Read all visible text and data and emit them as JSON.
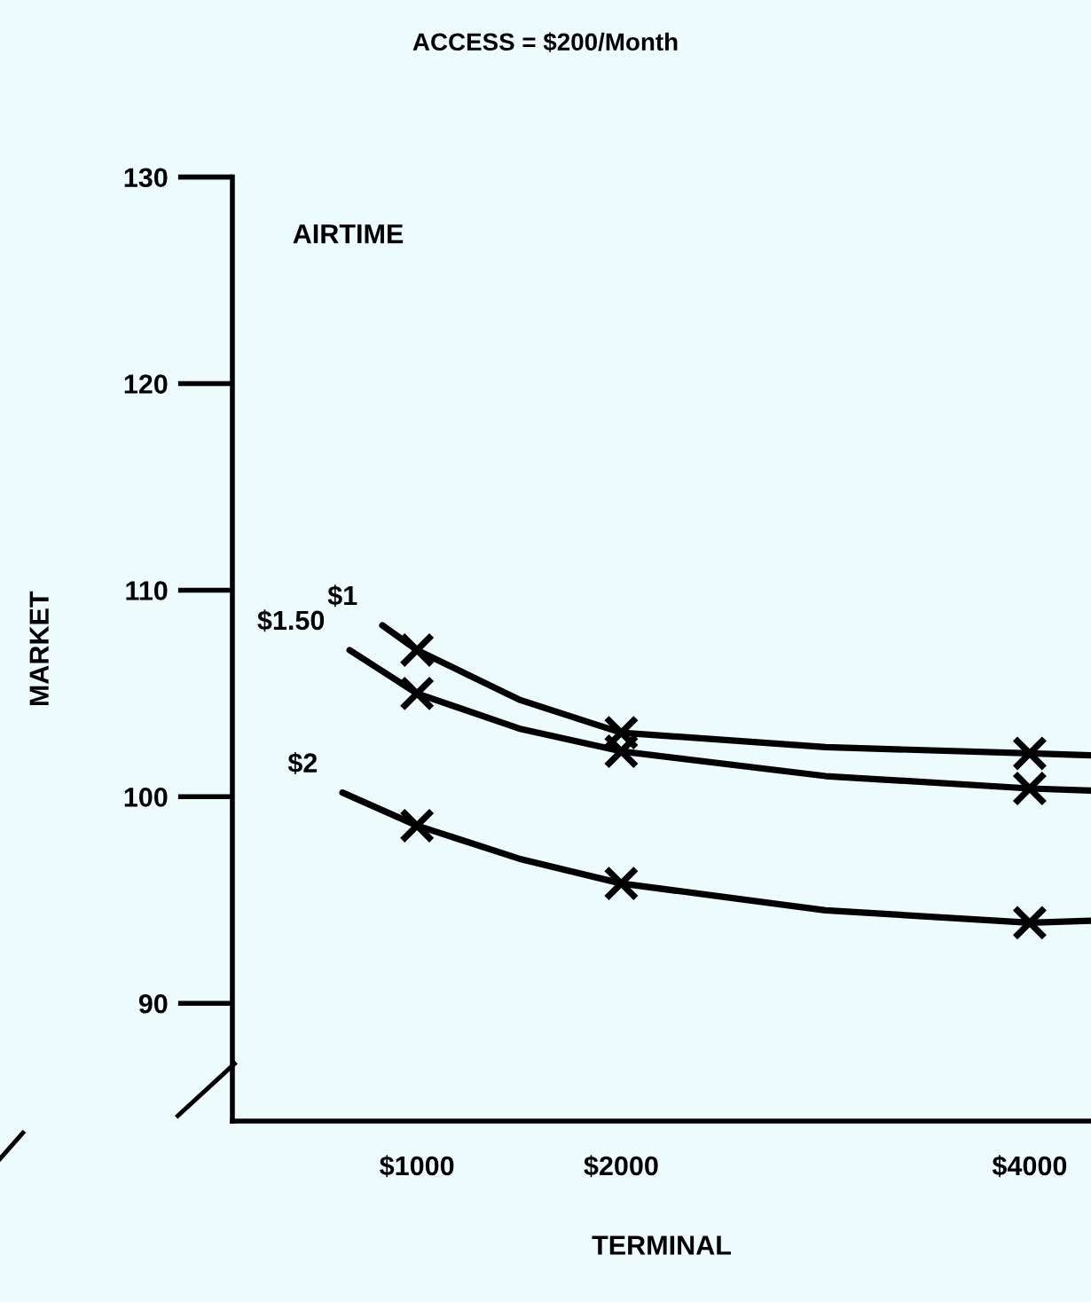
{
  "chart_data": {
    "type": "line",
    "title": "ACCESS = $200/Month",
    "xlabel": "TERMINAL",
    "ylabel": "MARKET",
    "annotations": [
      "AIRTIME"
    ],
    "xlim": [
      96,
      4300
    ],
    "ylim": [
      84.3,
      130
    ],
    "xticks": [
      {
        "value": 1000,
        "label": "$1000"
      },
      {
        "value": 2000,
        "label": "$2000"
      },
      {
        "value": 4000,
        "label": "$4000"
      }
    ],
    "yticks": [
      90,
      100,
      110,
      120,
      130
    ],
    "grid": false,
    "legend": false,
    "series": [
      {
        "name": "$1",
        "color": "#000000",
        "marker": "none",
        "x": [
          830,
          1000,
          1500,
          2000,
          3000,
          4000,
          4300
        ],
        "values": [
          108.3,
          107.1,
          104.7,
          103.1,
          102.4,
          102.1,
          102.0
        ]
      },
      {
        "name": "$1.50",
        "color": "#000000",
        "marker": "none",
        "x": [
          670,
          1000,
          1500,
          2000,
          3000,
          4000,
          4300
        ],
        "values": [
          107.1,
          105.0,
          103.3,
          102.2,
          101.0,
          100.4,
          100.3
        ]
      },
      {
        "name": "$2",
        "color": "#000000",
        "marker": "none",
        "x": [
          635,
          1000,
          1500,
          2000,
          3000,
          4000,
          4300
        ],
        "values": [
          100.2,
          98.6,
          97.0,
          95.8,
          94.5,
          93.9,
          94.0
        ]
      },
      {
        "type": "scatter",
        "color": "#000000",
        "marker": "cross",
        "x": [
          1000,
          2000,
          4000
        ],
        "values": [
          107.1,
          103.1,
          102.1
        ]
      },
      {
        "type": "scatter",
        "color": "#000000",
        "marker": "cross",
        "x": [
          1000,
          2000,
          4000
        ],
        "values": [
          105.0,
          102.2,
          100.4
        ]
      },
      {
        "type": "scatter",
        "color": "#000000",
        "marker": "cross",
        "x": [
          1000,
          2000,
          4000
        ],
        "values": [
          98.6,
          95.8,
          93.9
        ]
      }
    ]
  }
}
